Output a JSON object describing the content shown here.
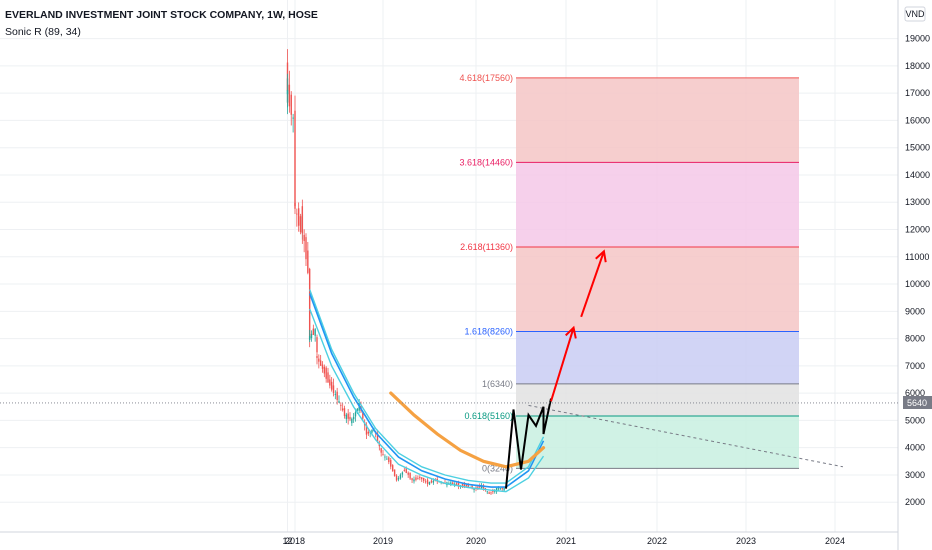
{
  "header": {
    "title": "EVERLAND INVESTMENT JOINT STOCK COMPANY, 1W, HOSE",
    "indicator": "Sonic R (89, 34)"
  },
  "price_scale": {
    "currency": "VND",
    "last_price_label": "5640"
  },
  "colors": {
    "up": "#26a69a",
    "down": "#ef5350",
    "ema_blue": "#2196f3",
    "ema_light": "#4dd0e1",
    "ema_orange": "#f5a142",
    "arrow": "#ff0000",
    "pattern": "#000000"
  },
  "chart_data": {
    "type": "candlestick",
    "title": "EVERLAND INVESTMENT JOINT STOCK COMPANY, 1W, HOSE",
    "ylim": [
      1300,
      20600
    ],
    "yticks": [
      2000,
      3000,
      4000,
      5000,
      6000,
      7000,
      8000,
      9000,
      10000,
      11000,
      12000,
      13000,
      14000,
      15000,
      16000,
      17000,
      18000,
      19000
    ],
    "x_ticks": [
      "12",
      "2018",
      "2019",
      "2020",
      "2021",
      "2022",
      "2023",
      "2024"
    ],
    "x_tick_dates": [
      "2017-12",
      "2018",
      "2019",
      "2020",
      "2021",
      "2022",
      "2023",
      "2024"
    ],
    "grid": true,
    "price_path": [
      [
        "2017-12",
        16500
      ],
      [
        "2017-12",
        17600
      ],
      [
        "2017-12",
        17300
      ],
      [
        "2018-01",
        16000
      ],
      [
        "2018-01",
        13000
      ],
      [
        "2018-02",
        12000
      ],
      [
        "2018-02",
        12500
      ],
      [
        "2018-03",
        10500
      ],
      [
        "2018-03",
        8000
      ],
      [
        "2018-04",
        8300
      ],
      [
        "2018-04",
        7400
      ],
      [
        "2018-05",
        6900
      ],
      [
        "2018-06",
        6300
      ],
      [
        "2018-07",
        5800
      ],
      [
        "2018-08",
        5200
      ],
      [
        "2018-09",
        5000
      ],
      [
        "2018-10",
        5600
      ],
      [
        "2018-11",
        4500
      ],
      [
        "2018-12",
        4700
      ],
      [
        "2019-01",
        3800
      ],
      [
        "2019-02",
        3500
      ],
      [
        "2019-03",
        2800
      ],
      [
        "2019-04",
        3200
      ],
      [
        "2019-05",
        2800
      ],
      [
        "2019-06",
        2900
      ],
      [
        "2019-07",
        2700
      ],
      [
        "2019-08",
        2800
      ],
      [
        "2019-09",
        2700
      ],
      [
        "2019-10",
        2700
      ],
      [
        "2019-11",
        2600
      ],
      [
        "2019-12",
        2600
      ],
      [
        "2020-01",
        2500
      ],
      [
        "2020-02",
        2600
      ],
      [
        "2020-03",
        2300
      ],
      [
        "2020-04",
        2500
      ],
      [
        "2020-05",
        2500
      ]
    ],
    "ema_upper": [
      [
        "2018-03",
        9800
      ],
      [
        "2018-06",
        7600
      ],
      [
        "2018-09",
        6000
      ],
      [
        "2018-12",
        4700
      ],
      [
        "2019-03",
        3800
      ],
      [
        "2019-06",
        3300
      ],
      [
        "2019-09",
        3000
      ],
      [
        "2019-12",
        2800
      ],
      [
        "2020-03",
        2700
      ],
      [
        "2020-05",
        2700
      ],
      [
        "2020-08",
        3300
      ],
      [
        "2020-10",
        4400
      ]
    ],
    "ema_lower": [
      [
        "2018-03",
        9200
      ],
      [
        "2018-06",
        7100
      ],
      [
        "2018-09",
        5600
      ],
      [
        "2018-12",
        4400
      ],
      [
        "2019-03",
        3500
      ],
      [
        "2019-06",
        3100
      ],
      [
        "2019-09",
        2800
      ],
      [
        "2019-12",
        2650
      ],
      [
        "2020-03",
        2550
      ],
      [
        "2020-05",
        2500
      ],
      [
        "2020-08",
        3000
      ],
      [
        "2020-10",
        3800
      ]
    ],
    "orange_curve": [
      [
        "2019-02",
        6000
      ],
      [
        "2019-05",
        5200
      ],
      [
        "2019-08",
        4500
      ],
      [
        "2019-11",
        3900
      ],
      [
        "2020-02",
        3500
      ],
      [
        "2020-05",
        3300
      ],
      [
        "2020-08",
        3500
      ],
      [
        "2020-10",
        4000
      ]
    ],
    "zigzag": [
      [
        "2020-05",
        2500
      ],
      [
        "2020-06",
        5400
      ],
      [
        "2020-07",
        3200
      ],
      [
        "2020-08",
        5200
      ],
      [
        "2020-09",
        4800
      ],
      [
        "2020-10",
        5500
      ],
      [
        "2020-10",
        4500
      ],
      [
        "2020-11",
        5800
      ]
    ],
    "fib_levels": [
      {
        "label": "4.618(17560)",
        "ratio": 4.618,
        "price": 17560,
        "color": "#ef5350"
      },
      {
        "label": "3.618(14460)",
        "ratio": 3.618,
        "price": 14460,
        "color": "#e91e63"
      },
      {
        "label": "2.618(11360)",
        "ratio": 2.618,
        "price": 11360,
        "color": "#f23645"
      },
      {
        "label": "1.618(8260)",
        "ratio": 1.618,
        "price": 8260,
        "color": "#2962ff"
      },
      {
        "label": "1(6340)",
        "ratio": 1,
        "price": 6340,
        "color": "#787b86"
      },
      {
        "label": "0.618(5160)",
        "ratio": 0.618,
        "price": 5160,
        "color": "#089981"
      },
      {
        "label": "0(3240)",
        "ratio": 0,
        "price": 3240,
        "color": "#787b86"
      }
    ],
    "fib_zone_colors": [
      "#f5c6c6",
      "#f4c8e8",
      "#f5c6c6",
      "#c9cdf3",
      "#e2e2e2",
      "#c8f0e0"
    ],
    "arrows": [
      {
        "from": [
          "2020-11",
          5700
        ],
        "to": [
          "2021-02",
          8400
        ]
      },
      {
        "from": [
          "2021-03",
          8800
        ],
        "to": [
          "2021-06",
          11200
        ]
      }
    ],
    "trend_line": {
      "from": [
        "2020-08",
        5550
      ],
      "to": [
        "2023-08",
        3300
      ]
    },
    "last_price": 5640
  }
}
